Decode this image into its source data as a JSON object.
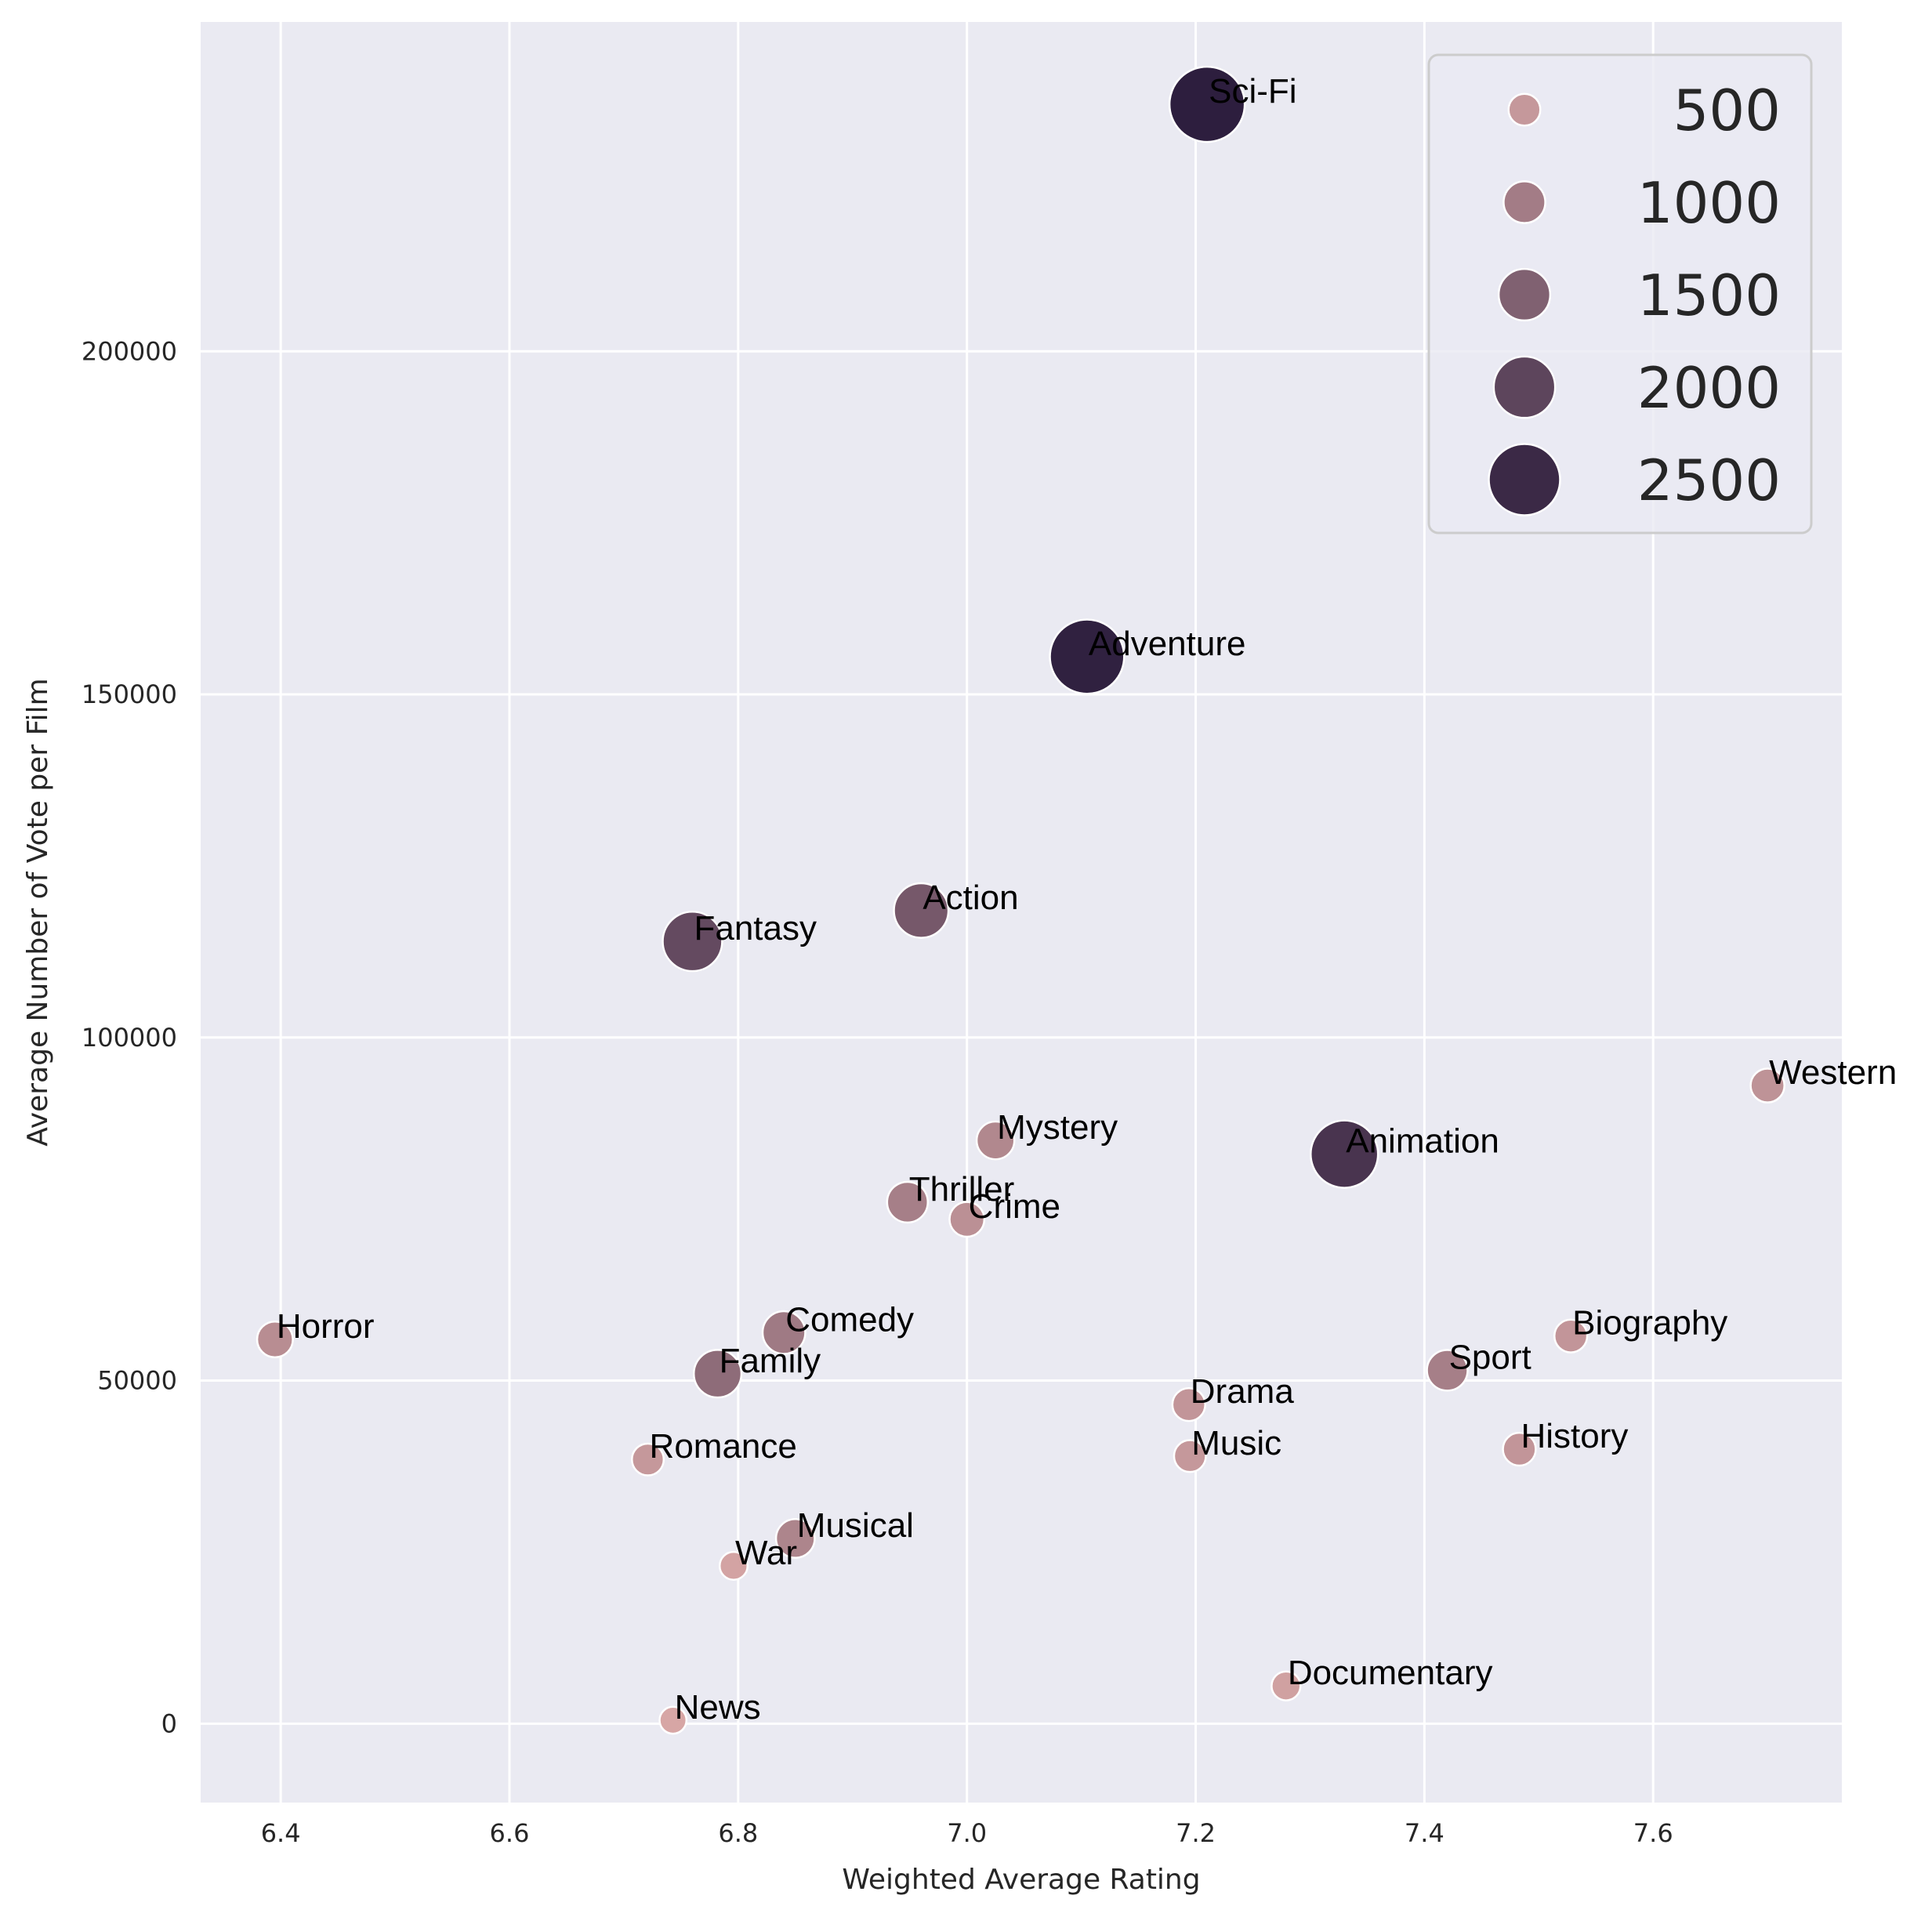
{
  "chart_data": {
    "type": "scatter",
    "xlabel": "Weighted Average Rating",
    "ylabel": "Average Number of Vote per Film",
    "xlim": [
      6.33,
      7.765
    ],
    "ylim": [
      -11500,
      248000
    ],
    "xticks": [
      6.4,
      6.6,
      6.8,
      7.0,
      7.2,
      7.4,
      7.6
    ],
    "xtick_labels": [
      "6.4",
      "6.6",
      "6.8",
      "7.0",
      "7.2",
      "7.4",
      "7.6"
    ],
    "yticks": [
      0,
      50000,
      100000,
      150000,
      200000
    ],
    "ytick_labels": [
      "0",
      "50000",
      "100000",
      "150000",
      "200000"
    ],
    "grid": true,
    "size_encoding": "number of films",
    "legend": {
      "placement": "top-right",
      "entries": [
        {
          "label": "500",
          "value": 500
        },
        {
          "label": "1000",
          "value": 1000
        },
        {
          "label": "1500",
          "value": 1500
        },
        {
          "label": "2000",
          "value": 2000
        },
        {
          "label": "2500",
          "value": 2500
        }
      ]
    },
    "points": [
      {
        "label": "Sci-Fi",
        "x": 7.21,
        "y": 236000,
        "size": 2700
      },
      {
        "label": "Adventure",
        "x": 7.105,
        "y": 155500,
        "size": 2650
      },
      {
        "label": "Action",
        "x": 6.96,
        "y": 118500,
        "size": 1650
      },
      {
        "label": "Fantasy",
        "x": 6.76,
        "y": 114000,
        "size": 1900
      },
      {
        "label": "Western",
        "x": 7.7,
        "y": 93000,
        "size": 600
      },
      {
        "label": "Mystery",
        "x": 7.025,
        "y": 85000,
        "size": 800
      },
      {
        "label": "Animation",
        "x": 7.33,
        "y": 83000,
        "size": 2300
      },
      {
        "label": "Thriller",
        "x": 6.948,
        "y": 76000,
        "size": 950
      },
      {
        "label": "Crime",
        "x": 7.0,
        "y": 73500,
        "size": 650
      },
      {
        "label": "Horror",
        "x": 6.395,
        "y": 56000,
        "size": 700
      },
      {
        "label": "Biography",
        "x": 7.528,
        "y": 56500,
        "size": 550
      },
      {
        "label": "Comedy",
        "x": 6.84,
        "y": 57000,
        "size": 1050
      },
      {
        "label": "Family",
        "x": 6.782,
        "y": 51000,
        "size": 1300
      },
      {
        "label": "Sport",
        "x": 7.42,
        "y": 51500,
        "size": 950
      },
      {
        "label": "Drama",
        "x": 7.194,
        "y": 46500,
        "size": 550
      },
      {
        "label": "Romance",
        "x": 6.721,
        "y": 38500,
        "size": 500
      },
      {
        "label": "Music",
        "x": 7.195,
        "y": 39000,
        "size": 500
      },
      {
        "label": "History",
        "x": 7.483,
        "y": 40000,
        "size": 550
      },
      {
        "label": "Musical",
        "x": 6.85,
        "y": 27000,
        "size": 850
      },
      {
        "label": "War",
        "x": 6.796,
        "y": 23000,
        "size": 300
      },
      {
        "label": "Documentary",
        "x": 7.279,
        "y": 5500,
        "size": 350
      },
      {
        "label": "News",
        "x": 6.743,
        "y": 500,
        "size": 250
      }
    ]
  }
}
